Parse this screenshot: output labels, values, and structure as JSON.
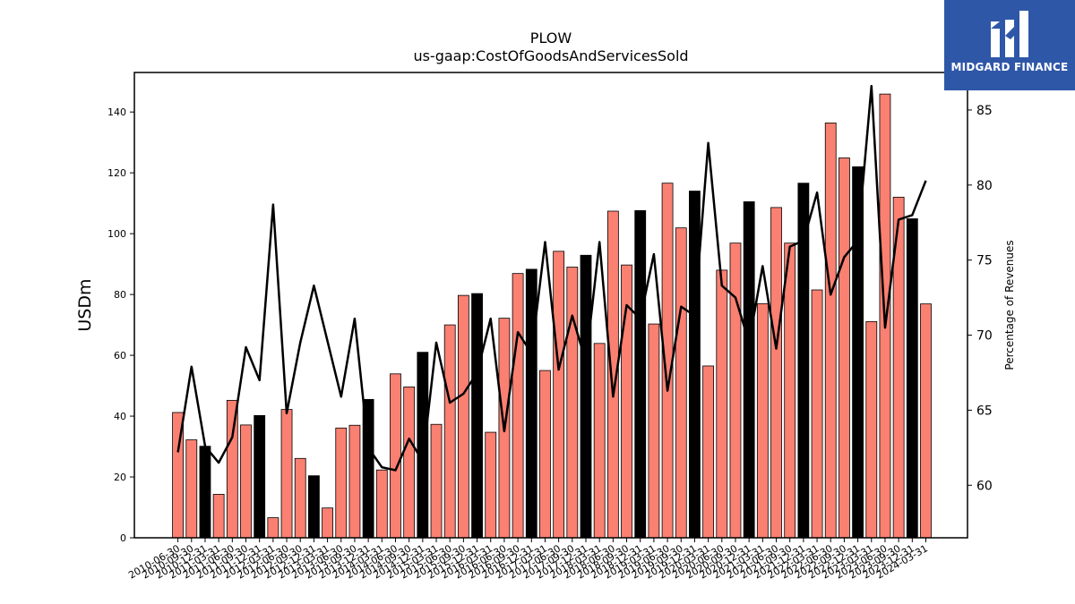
{
  "chart_data": {
    "type": "bar",
    "title": "PLOW",
    "subtitle": "us-gaap:CostOfGoodsAndServicesSold",
    "ylabel": "USDm",
    "y2label": "Percentage of Revenues",
    "ylim": [
      0,
      153
    ],
    "y2lim": [
      56.5,
      87.5
    ],
    "yticks": [
      0,
      20,
      40,
      60,
      80,
      100,
      120,
      140
    ],
    "y2ticks": [
      60,
      65,
      70,
      75,
      80,
      85
    ],
    "categories": [
      "2010-06-30",
      "2010-09-30",
      "2010-12-31",
      "2011-03-31",
      "2011-06-30",
      "2011-09-30",
      "2011-12-31",
      "2012-03-31",
      "2012-06-30",
      "2012-09-30",
      "2012-12-31",
      "2013-03-31",
      "2013-06-30",
      "2013-09-30",
      "2013-12-31",
      "2014-03-31",
      "2014-06-30",
      "2014-09-30",
      "2014-12-31",
      "2015-03-31",
      "2015-06-30",
      "2015-09-30",
      "2015-12-31",
      "2016-03-31",
      "2016-06-30",
      "2016-09-30",
      "2016-12-31",
      "2017-03-31",
      "2017-06-30",
      "2017-09-30",
      "2017-12-31",
      "2018-03-31",
      "2018-06-30",
      "2018-09-30",
      "2018-12-31",
      "2019-03-31",
      "2019-06-30",
      "2019-09-30",
      "2019-12-31",
      "2020-03-31",
      "2020-06-30",
      "2020-09-30",
      "2020-12-31",
      "2021-03-31",
      "2021-06-30",
      "2021-09-30",
      "2021-12-31",
      "2022-03-31",
      "2022-06-30",
      "2022-09-30",
      "2022-12-31",
      "2023-03-31",
      "2023-06-30",
      "2023-09-30",
      "2023-12-31",
      "2024-03-31"
    ],
    "series": [
      {
        "kind": "bar",
        "axis": "left",
        "values": [
          41.2,
          32.2,
          30.1,
          14.3,
          45.2,
          37.1,
          40.2,
          6.6,
          42.2,
          26.1,
          20.4,
          9.8,
          36.1,
          37.0,
          45.5,
          22.3,
          53.9,
          49.6,
          61.0,
          37.3,
          70.0,
          79.7,
          80.3,
          34.7,
          72.2,
          86.9,
          88.3,
          55.0,
          94.2,
          89.0,
          92.9,
          63.9,
          107.4,
          89.7,
          107.6,
          70.3,
          116.6,
          101.9,
          114.0,
          56.5,
          88.0,
          96.9,
          110.5,
          77.0,
          108.6,
          96.9,
          116.6,
          81.5,
          136.4,
          124.9,
          122.0,
          71.1,
          145.9,
          112.0,
          104.9,
          76.9
        ],
        "colors": [
          "#fa8072",
          "#fa8072",
          "#000000",
          "#fa8072",
          "#fa8072",
          "#fa8072",
          "#000000",
          "#fa8072",
          "#fa8072",
          "#fa8072",
          "#000000",
          "#fa8072",
          "#fa8072",
          "#fa8072",
          "#000000",
          "#fa8072",
          "#fa8072",
          "#fa8072",
          "#000000",
          "#fa8072",
          "#fa8072",
          "#fa8072",
          "#000000",
          "#fa8072",
          "#fa8072",
          "#fa8072",
          "#000000",
          "#fa8072",
          "#fa8072",
          "#fa8072",
          "#000000",
          "#fa8072",
          "#fa8072",
          "#fa8072",
          "#000000",
          "#fa8072",
          "#fa8072",
          "#fa8072",
          "#000000",
          "#fa8072",
          "#fa8072",
          "#fa8072",
          "#000000",
          "#fa8072",
          "#fa8072",
          "#fa8072",
          "#000000",
          "#fa8072",
          "#fa8072",
          "#fa8072",
          "#000000",
          "#fa8072",
          "#fa8072",
          "#fa8072",
          "#000000",
          "#fa8072"
        ]
      },
      {
        "kind": "line",
        "axis": "right",
        "color": "#000000",
        "values": [
          62.2,
          67.9,
          62.6,
          61.5,
          63.2,
          69.2,
          67.0,
          78.7,
          64.8,
          69.5,
          73.3,
          69.6,
          65.9,
          71.1,
          62.5,
          61.2,
          61.0,
          63.1,
          61.6,
          69.5,
          65.5,
          66.1,
          67.5,
          71.1,
          63.6,
          70.2,
          68.8,
          76.2,
          67.7,
          71.3,
          68.2,
          76.2,
          65.9,
          72.0,
          71.1,
          75.4,
          66.3,
          71.9,
          71.3,
          82.8,
          73.3,
          72.5,
          69.5,
          74.6,
          69.1,
          75.9,
          76.3,
          79.5,
          72.7,
          75.2,
          76.3,
          86.6,
          70.5,
          77.7,
          78.0,
          80.3
        ]
      }
    ]
  },
  "logo": {
    "text": "MIDGARD FINANCE",
    "color": "#2f57a8"
  }
}
